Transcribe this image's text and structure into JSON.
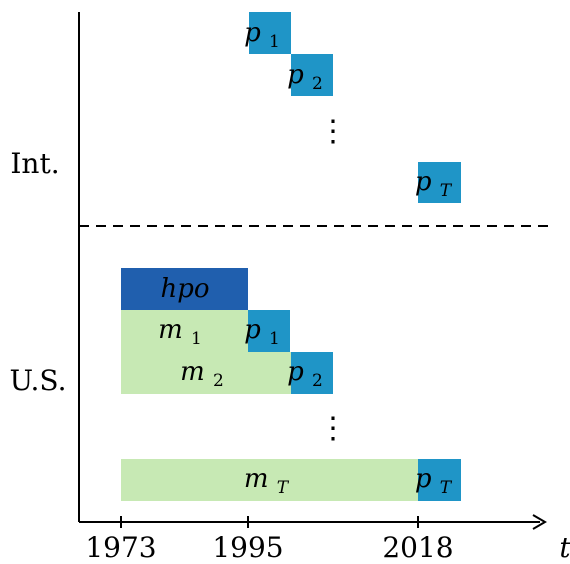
{
  "rows": {
    "international": "Int.",
    "us": "U.S."
  },
  "axis": {
    "variable": "t",
    "ticks": [
      "1973",
      "1995",
      "2018"
    ]
  },
  "colors": {
    "p_box": "#1f95c7",
    "hpo_box": "#205fae",
    "m_box": "#c7e9b4",
    "box_text_light": "#ffffff",
    "box_text_dark": "#000000"
  },
  "international_boxes": [
    {
      "kind": "p",
      "base": "p",
      "sub": "1"
    },
    {
      "kind": "p",
      "base": "p",
      "sub": "2"
    },
    {
      "kind": "p",
      "base": "p",
      "sub": "T"
    }
  ],
  "us_rows": [
    {
      "m": null,
      "p": null,
      "hpo": "hpo"
    },
    {
      "m": {
        "base": "m",
        "sub": "1"
      },
      "p": {
        "base": "p",
        "sub": "1"
      }
    },
    {
      "m": {
        "base": "m",
        "sub": "2"
      },
      "p": {
        "base": "p",
        "sub": "2"
      }
    },
    {
      "m": {
        "base": "m",
        "sub": "T"
      },
      "p": {
        "base": "p",
        "sub": "T"
      }
    }
  ],
  "ellipsis": "⋮"
}
